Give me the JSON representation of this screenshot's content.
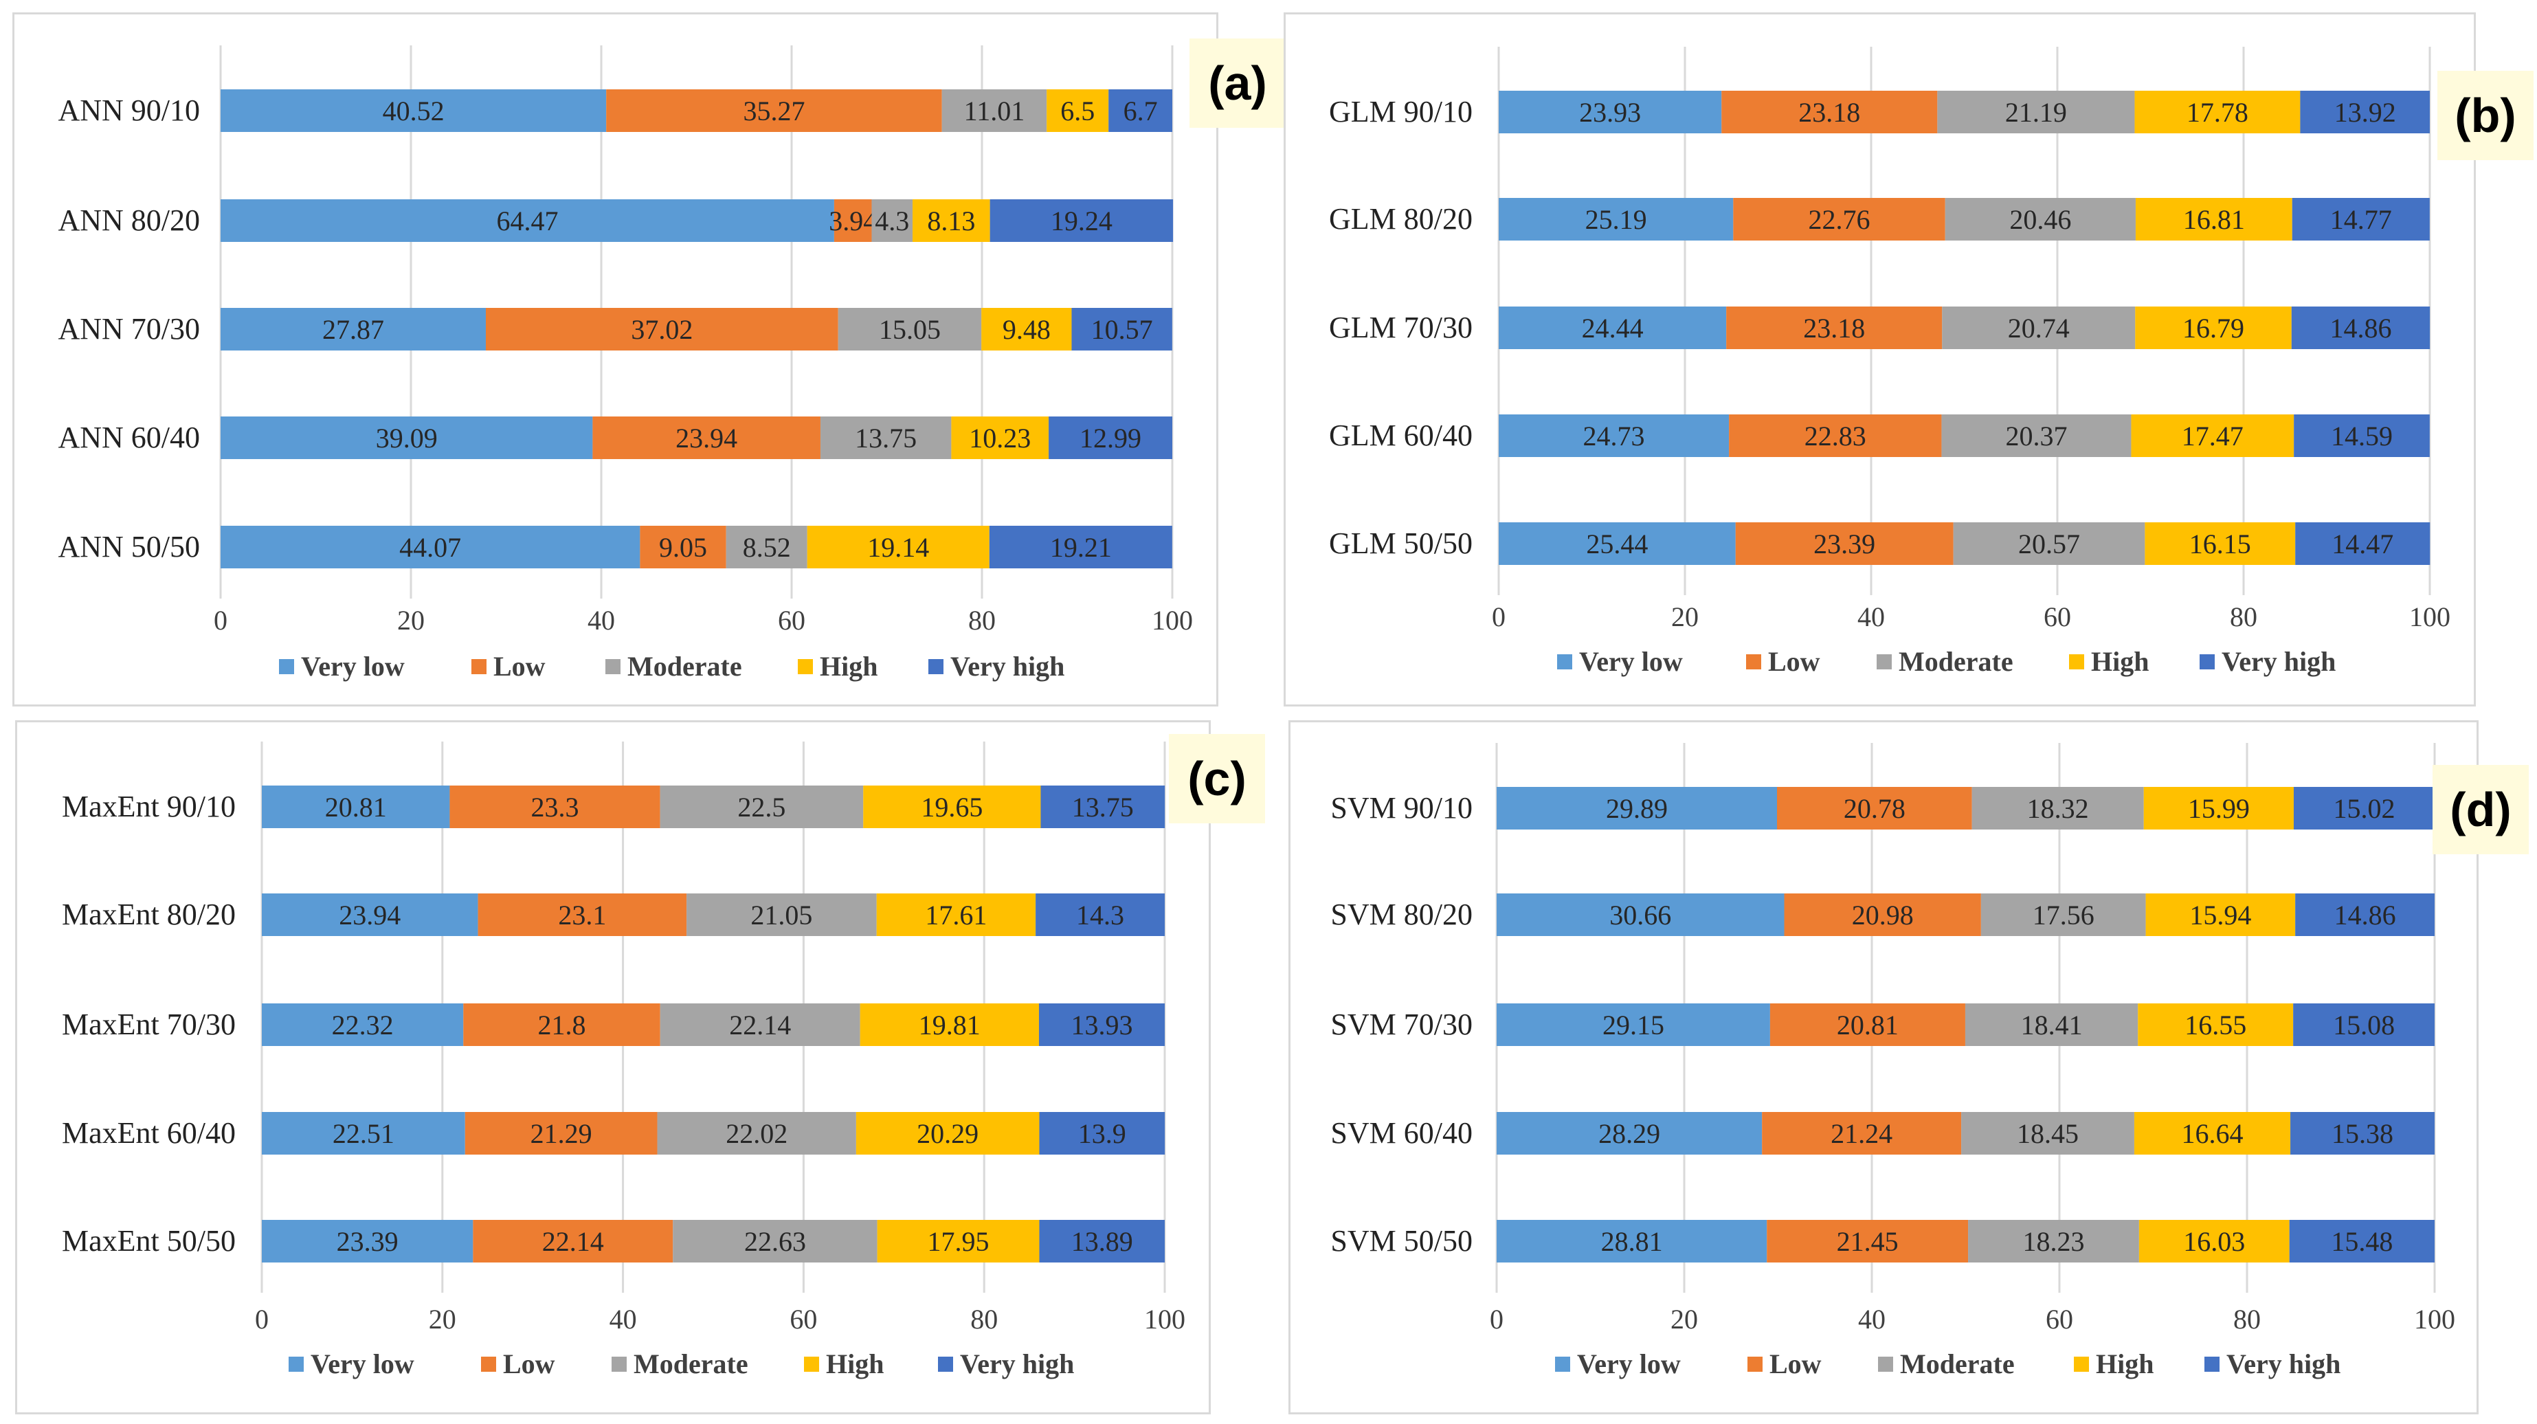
{
  "colors": {
    "very_low": "#5b9bd5",
    "low": "#ed7d31",
    "moderate": "#a5a5a5",
    "high": "#ffc000",
    "very_high": "#4472c4",
    "grid": "#d9d9d9",
    "badge_bg": "#fffbdc"
  },
  "chart_data": [
    {
      "type": "bar",
      "orientation": "horizontal",
      "stacked": true,
      "badge": "(a)",
      "categories": [
        "ANN 90/10",
        "ANN 80/20",
        "ANN 70/30",
        "ANN 60/40",
        "ANN 50/50"
      ],
      "series": [
        {
          "name": "Very low",
          "values": [
            40.52,
            64.47,
            27.87,
            39.09,
            44.07
          ]
        },
        {
          "name": "Low",
          "values": [
            35.27,
            3.94,
            37.02,
            23.94,
            9.05
          ]
        },
        {
          "name": "Moderate",
          "values": [
            11.01,
            4.3,
            15.05,
            13.75,
            8.52
          ]
        },
        {
          "name": "High",
          "values": [
            6.5,
            8.13,
            9.48,
            10.23,
            19.14
          ]
        },
        {
          "name": "Very high",
          "values": [
            6.7,
            19.24,
            10.57,
            12.99,
            19.21
          ]
        }
      ],
      "label_text": [
        [
          "40.52",
          "64.47",
          "27.87",
          "39.09",
          "44.07"
        ],
        [
          "35.27",
          "3.94",
          "37.02",
          "23.94",
          "9.05"
        ],
        [
          "11.01",
          "4.3",
          "15.05",
          "13.75",
          "8.52"
        ],
        [
          "6.5",
          "8.13",
          "9.48",
          "10.23",
          "19.14"
        ],
        [
          "6.7",
          "19.24",
          "10.57",
          "12.99",
          "19.21"
        ]
      ],
      "xlim": [
        0,
        100
      ],
      "xticks": [
        "0",
        "20",
        "40",
        "60",
        "80",
        "100"
      ],
      "legend": [
        "Very low",
        "Low",
        "Moderate",
        "High",
        "Very high"
      ],
      "legend_position": "bottom"
    },
    {
      "type": "bar",
      "orientation": "horizontal",
      "stacked": true,
      "badge": "(b)",
      "categories": [
        "GLM 90/10",
        "GLM 80/20",
        "GLM 70/30",
        "GLM 60/40",
        "GLM 50/50"
      ],
      "series": [
        {
          "name": "Very low",
          "values": [
            23.93,
            25.19,
            24.44,
            24.73,
            25.44
          ]
        },
        {
          "name": "Low",
          "values": [
            23.18,
            22.76,
            23.18,
            22.83,
            23.39
          ]
        },
        {
          "name": "Moderate",
          "values": [
            21.19,
            20.46,
            20.74,
            20.37,
            20.57
          ]
        },
        {
          "name": "High",
          "values": [
            17.78,
            16.81,
            16.79,
            17.47,
            16.15
          ]
        },
        {
          "name": "Very high",
          "values": [
            13.92,
            14.77,
            14.86,
            14.59,
            14.47
          ]
        }
      ],
      "label_text": [
        [
          "23.93",
          "25.19",
          "24.44",
          "24.73",
          "25.44"
        ],
        [
          "23.18",
          "22.76",
          "23.18",
          "22.83",
          "23.39"
        ],
        [
          "21.19",
          "20.46",
          "20.74",
          "20.37",
          "20.57"
        ],
        [
          "17.78",
          "16.81",
          "16.79",
          "17.47",
          "16.15"
        ],
        [
          "13.92",
          "14.77",
          "14.86",
          "14.59",
          "14.47"
        ]
      ],
      "xlim": [
        0,
        100
      ],
      "xticks": [
        "0",
        "20",
        "40",
        "60",
        "80",
        "100"
      ],
      "legend": [
        "Very low",
        "Low",
        "Moderate",
        "High",
        "Very high"
      ],
      "legend_position": "bottom"
    },
    {
      "type": "bar",
      "orientation": "horizontal",
      "stacked": true,
      "badge": "(c)",
      "categories": [
        "MaxEnt 90/10",
        "MaxEnt 80/20",
        "MaxEnt 70/30",
        "MaxEnt 60/40",
        "MaxEnt 50/50"
      ],
      "series": [
        {
          "name": "Very low",
          "values": [
            20.81,
            23.94,
            22.32,
            22.51,
            23.39
          ]
        },
        {
          "name": "Low",
          "values": [
            23.3,
            23.1,
            21.8,
            21.29,
            22.14
          ]
        },
        {
          "name": "Moderate",
          "values": [
            22.5,
            21.05,
            22.14,
            22.02,
            22.63
          ]
        },
        {
          "name": "High",
          "values": [
            19.65,
            17.61,
            19.81,
            20.29,
            17.95
          ]
        },
        {
          "name": "Very high",
          "values": [
            13.75,
            14.3,
            13.93,
            13.9,
            13.89
          ]
        }
      ],
      "label_text": [
        [
          "20.81",
          "23.94",
          "22.32",
          "22.51",
          "23.39"
        ],
        [
          "23.3",
          "23.1",
          "21.8",
          "21.29",
          "22.14"
        ],
        [
          "22.5",
          "21.05",
          "22.14",
          "22.02",
          "22.63"
        ],
        [
          "19.65",
          "17.61",
          "19.81",
          "20.29",
          "17.95"
        ],
        [
          "13.75",
          "14.3",
          "13.93",
          "13.9",
          "13.89"
        ]
      ],
      "xlim": [
        0,
        100
      ],
      "xticks": [
        "0",
        "20",
        "40",
        "60",
        "80",
        "100"
      ],
      "legend": [
        "Very low",
        "Low",
        "Moderate",
        "High",
        "Very high"
      ],
      "legend_position": "bottom"
    },
    {
      "type": "bar",
      "orientation": "horizontal",
      "stacked": true,
      "badge": "(d)",
      "categories": [
        "SVM 90/10",
        "SVM 80/20",
        "SVM 70/30",
        "SVM 60/40",
        "SVM 50/50"
      ],
      "series": [
        {
          "name": "Very low",
          "values": [
            29.89,
            30.66,
            29.15,
            28.29,
            28.81
          ]
        },
        {
          "name": "Low",
          "values": [
            20.78,
            20.98,
            20.81,
            21.24,
            21.45
          ]
        },
        {
          "name": "Moderate",
          "values": [
            18.32,
            17.56,
            18.41,
            18.45,
            18.23
          ]
        },
        {
          "name": "High",
          "values": [
            15.99,
            15.94,
            16.55,
            16.64,
            16.03
          ]
        },
        {
          "name": "Very high",
          "values": [
            15.02,
            14.86,
            15.08,
            15.38,
            15.48
          ]
        }
      ],
      "label_text": [
        [
          "29.89",
          "30.66",
          "29.15",
          "28.29",
          "28.81"
        ],
        [
          "20.78",
          "20.98",
          "20.81",
          "21.24",
          "21.45"
        ],
        [
          "18.32",
          "17.56",
          "18.41",
          "18.45",
          "18.23"
        ],
        [
          "15.99",
          "15.94",
          "16.55",
          "16.64",
          "16.03"
        ],
        [
          "15.02",
          "14.86",
          "15.08",
          "15.38",
          "15.48"
        ]
      ],
      "xlim": [
        0,
        100
      ],
      "xticks": [
        "0",
        "20",
        "40",
        "60",
        "80",
        "100"
      ],
      "legend": [
        "Very low",
        "Low",
        "Moderate",
        "High",
        "Very high"
      ],
      "legend_position": "bottom"
    }
  ]
}
